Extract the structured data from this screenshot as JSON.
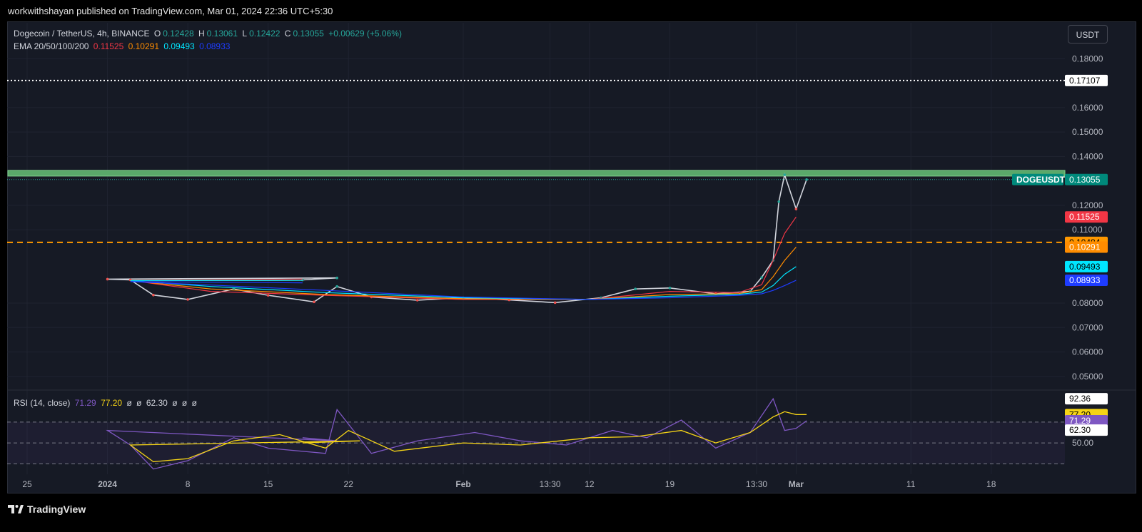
{
  "header": {
    "published_text": "workwithshayan published on TradingView.com, Mar 01, 2024 22:36 UTC+5:30"
  },
  "legend": {
    "symbol": "Dogecoin / TetherUS, 4h, BINANCE",
    "o_label": "O",
    "o_value": "0.12428",
    "h_label": "H",
    "h_value": "0.13061",
    "l_label": "L",
    "l_value": "0.12422",
    "c_label": "C",
    "c_value": "0.13055",
    "change": "+0.00629 (+5.06%)",
    "ema_label": "EMA 20/50/100/200",
    "ema_values": [
      "0.11525",
      "0.10291",
      "0.09493",
      "0.08933"
    ],
    "rsi_label": "RSI (14, close)",
    "rsi_values": [
      "71.29",
      "77.20",
      "ø",
      "ø",
      "62.30",
      "ø",
      "ø",
      "ø"
    ]
  },
  "currency_button": "USDT",
  "footer": {
    "brand": "TradingView"
  },
  "colors": {
    "bg": "#161a25",
    "grid": "#1f2330",
    "up": "#26a69a",
    "down": "#ef5350",
    "ema20": "#f23645",
    "ema50": "#ff8c00",
    "ema100": "#00e5ff",
    "ema200": "#1e3cff",
    "zone": "#5aa86a",
    "dashed": "#ff9800",
    "rsi": "#7e57c2",
    "rsi_ma": "#f5d416"
  },
  "chart_data": [
    {
      "type": "line",
      "title": "Dogecoin / TetherUS, 4h, BINANCE",
      "y_axis_ticks": [
        "0.18000",
        "0.16000",
        "0.15000",
        "0.14000",
        "0.12000",
        "0.11000",
        "0.08000",
        "0.07000",
        "0.06000",
        "0.05000"
      ],
      "ylim": [
        0.045,
        0.19
      ],
      "x_ticks": [
        "25",
        "2024",
        "8",
        "15",
        "22",
        "Feb",
        "13:30",
        "12",
        "19",
        "13:30",
        "Mar",
        "11",
        "18"
      ],
      "series": [
        {
          "name": "DOGEUSDT",
          "x": [
            "Dec 25",
            "Dec 28",
            "Jan 1",
            "Jan 3",
            "Jan 5",
            "Jan 8",
            "Jan 12",
            "Jan 15",
            "Jan 19",
            "Jan 21",
            "Jan 24",
            "Jan 28",
            "Feb 1",
            "Feb 5",
            "Feb 9",
            "Feb 13",
            "Feb 16",
            "Feb 19",
            "Feb 23",
            "Feb 26",
            "Feb 27",
            "Feb 28",
            "Feb 28 12:00",
            "Feb 29",
            "Mar 1",
            "Mar 1 22:00"
          ],
          "values": [
            0.0895,
            0.0903,
            0.0898,
            0.0895,
            0.0833,
            0.0815,
            0.0858,
            0.0832,
            0.0805,
            0.0868,
            0.0825,
            0.0812,
            0.0822,
            0.0813,
            0.0802,
            0.0822,
            0.0858,
            0.0862,
            0.0838,
            0.0848,
            0.0905,
            0.0975,
            0.1215,
            0.1325,
            0.1185,
            0.13055
          ]
        },
        {
          "name": "EMA 20",
          "x": [
            "Dec 25",
            "Jan 3",
            "Jan 10",
            "Jan 20",
            "Feb 1",
            "Feb 12",
            "Feb 19",
            "Feb 25",
            "Feb 27",
            "Feb 28",
            "Feb 29",
            "Mar 1"
          ],
          "values": [
            0.0898,
            0.0893,
            0.0848,
            0.0832,
            0.0815,
            0.0815,
            0.0848,
            0.0843,
            0.0875,
            0.0975,
            0.1085,
            0.11525
          ]
        },
        {
          "name": "EMA 50",
          "x": [
            "Dec 25",
            "Jan 3",
            "Jan 10",
            "Jan 20",
            "Feb 1",
            "Feb 12",
            "Feb 19",
            "Feb 25",
            "Feb 27",
            "Feb 28",
            "Feb 29",
            "Mar 1"
          ],
          "values": [
            0.0893,
            0.0892,
            0.0858,
            0.0835,
            0.0818,
            0.0815,
            0.0835,
            0.0839,
            0.0855,
            0.0908,
            0.0975,
            0.10291
          ]
        },
        {
          "name": "EMA 100",
          "x": [
            "Dec 25",
            "Jan 3",
            "Jan 10",
            "Jan 20",
            "Feb 1",
            "Feb 12",
            "Feb 19",
            "Feb 25",
            "Feb 27",
            "Feb 28",
            "Feb 29",
            "Mar 1"
          ],
          "values": [
            0.0893,
            0.0892,
            0.0868,
            0.0843,
            0.0822,
            0.0815,
            0.0828,
            0.0836,
            0.0845,
            0.0872,
            0.0918,
            0.09493
          ]
        },
        {
          "name": "EMA 200",
          "x": [
            "Dec 25",
            "Jan 3",
            "Jan 10",
            "Jan 20",
            "Feb 1",
            "Feb 12",
            "Feb 19",
            "Feb 25",
            "Feb 27",
            "Feb 28",
            "Feb 29",
            "Mar 1"
          ],
          "values": [
            0.0883,
            0.0888,
            0.0874,
            0.0852,
            0.0825,
            0.0815,
            0.0822,
            0.0832,
            0.0838,
            0.0852,
            0.0872,
            0.08933
          ]
        }
      ],
      "levels": [
        {
          "kind": "dotted",
          "value": 0.17107,
          "label": "0.17107"
        },
        {
          "kind": "zone",
          "from": 0.1328,
          "to": 0.1343
        },
        {
          "kind": "dotted-teal",
          "value": 0.13055,
          "label": "0.13055"
        },
        {
          "kind": "dashed",
          "value": 0.10484,
          "label": "0.10484"
        }
      ],
      "price_badges": [
        {
          "value": 0.17107,
          "label": "0.17107",
          "bg": "#ffffff",
          "fg": "#000000"
        },
        {
          "value": 0.13055,
          "label": "0.13055",
          "name": "DOGEUSDT",
          "bg": "#00897b",
          "fg": "#ffffff"
        },
        {
          "value": 0.11525,
          "label": "0.11525",
          "bg": "#f23645",
          "fg": "#ffffff"
        },
        {
          "value": 0.10484,
          "label": "0.10484",
          "bg": "#ff9800",
          "fg": "#000000"
        },
        {
          "value": 0.10291,
          "label": "0.10291",
          "bg": "#ff8c00",
          "fg": "#ffffff"
        },
        {
          "value": 0.09493,
          "label": "0.09493",
          "bg": "#00e5ff",
          "fg": "#000000"
        },
        {
          "value": 0.08933,
          "label": "0.08933",
          "bg": "#1e3cff",
          "fg": "#ffffff"
        }
      ]
    },
    {
      "type": "line",
      "title": "RSI (14, close)",
      "ylim": [
        20,
        100
      ],
      "bands": [
        70,
        50,
        30
      ],
      "y_axis_ticks": [
        "50.00"
      ],
      "series": [
        {
          "name": "RSI",
          "x": [
            "Dec 25",
            "Dec 28",
            "Jan 1",
            "Jan 3",
            "Jan 5",
            "Jan 8",
            "Jan 12",
            "Jan 15",
            "Jan 20",
            "Jan 21",
            "Jan 24",
            "Jan 28",
            "Feb 2",
            "Feb 6",
            "Feb 10",
            "Feb 14",
            "Feb 17",
            "Feb 20",
            "Feb 23",
            "Feb 26",
            "Feb 28",
            "Feb 29",
            "Mar 1",
            "Mar 1 22:00"
          ],
          "values": [
            55,
            52,
            62,
            48,
            25,
            33,
            55,
            45,
            40,
            82,
            40,
            52,
            60,
            52,
            48,
            62,
            55,
            72,
            45,
            60,
            92.36,
            62,
            64,
            71.29
          ]
        },
        {
          "name": "RSI MA",
          "x": [
            "Dec 25",
            "Dec 30",
            "Jan 3",
            "Jan 5",
            "Jan 8",
            "Jan 12",
            "Jan 16",
            "Jan 20",
            "Jan 22",
            "Jan 26",
            "Feb 1",
            "Feb 6",
            "Feb 12",
            "Feb 16",
            "Feb 20",
            "Feb 23",
            "Feb 26",
            "Feb 28",
            "Feb 29",
            "Mar 1",
            "Mar 1 22:00"
          ],
          "values": [
            50,
            52,
            48,
            32,
            35,
            52,
            58,
            45,
            62,
            42,
            50,
            48,
            55,
            56,
            62,
            50,
            60,
            75,
            80,
            77.2,
            77.2
          ]
        }
      ],
      "value_badges": [
        {
          "label": "92.36",
          "value": 92.36,
          "bg": "#ffffff",
          "fg": "#000000"
        },
        {
          "label": "77.20",
          "value": 77.2,
          "bg": "#f5d416",
          "fg": "#000000"
        },
        {
          "label": "71.29",
          "value": 71.29,
          "bg": "#7e57c2",
          "fg": "#ffffff"
        },
        {
          "label": "62.30",
          "value": 62.3,
          "bg": "#ffffff",
          "fg": "#000000"
        }
      ]
    }
  ]
}
